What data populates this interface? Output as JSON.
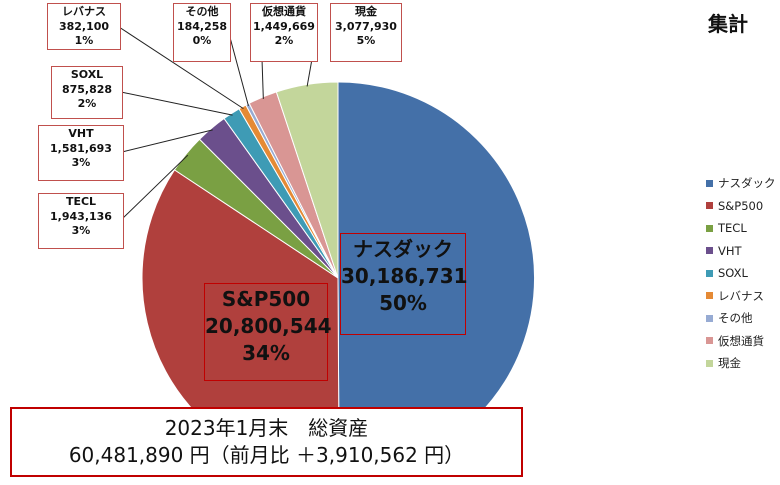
{
  "chart_data": {
    "type": "pie",
    "title": "集計",
    "slices": [
      {
        "name": "ナスダック",
        "value": 30186731,
        "percent": "50%",
        "color": "#4470a8"
      },
      {
        "name": "S&P500",
        "value": 20800544,
        "percent": "34%",
        "color": "#b0403d"
      },
      {
        "name": "TECL",
        "value": 1943136,
        "percent": "3%",
        "color": "#7aa043"
      },
      {
        "name": "VHT",
        "value": 1581693,
        "percent": "3%",
        "color": "#6b4f8c"
      },
      {
        "name": "SOXL",
        "value": 875828,
        "percent": "2%",
        "color": "#3e9bb5"
      },
      {
        "name": "レバナス",
        "value": 382100,
        "percent": "1%",
        "color": "#e58a35"
      },
      {
        "name": "その他",
        "value": 184258,
        "percent": "0%",
        "color": "#97abd3"
      },
      {
        "name": "仮想通貨",
        "value": 1449669,
        "percent": "2%",
        "color": "#d99694"
      },
      {
        "name": "現金",
        "value": 3077930,
        "percent": "5%",
        "color": "#c3d69b"
      }
    ],
    "data_labels": {
      "ナスダック": {
        "name": "ナスダック",
        "value": "30,186,731",
        "percent": "50%"
      },
      "S&P500": {
        "name": "S&P500",
        "value": "20,800,544",
        "percent": "34%"
      },
      "TECL": {
        "name": "TECL",
        "value": "1,943,136",
        "percent": "3%"
      },
      "VHT": {
        "name": "VHT",
        "value": "1,581,693",
        "percent": "3%"
      },
      "SOXL": {
        "name": "SOXL",
        "value": "875,828",
        "percent": "2%"
      },
      "レバナス": {
        "name": "レバナス",
        "value": "382,100",
        "percent": "1%"
      },
      "その他": {
        "name": "その他",
        "value": "184,258",
        "percent": "0%"
      },
      "仮想通貨": {
        "name": "仮想通貨",
        "value": "1,449,669",
        "percent": "2%"
      },
      "現金": {
        "name": "現金",
        "value": "3,077,930",
        "percent": "5%"
      }
    },
    "legend": {
      "placement": "right",
      "items": [
        "ナスダック",
        "S&P500",
        "TECL",
        "VHT",
        "SOXL",
        "レバナス",
        "その他",
        "仮想通貨",
        "現金"
      ]
    }
  },
  "summary": {
    "line1": "2023年1月末　総資産",
    "line2": "60,481,890 円（前月比 ＋3,910,562 円）"
  }
}
